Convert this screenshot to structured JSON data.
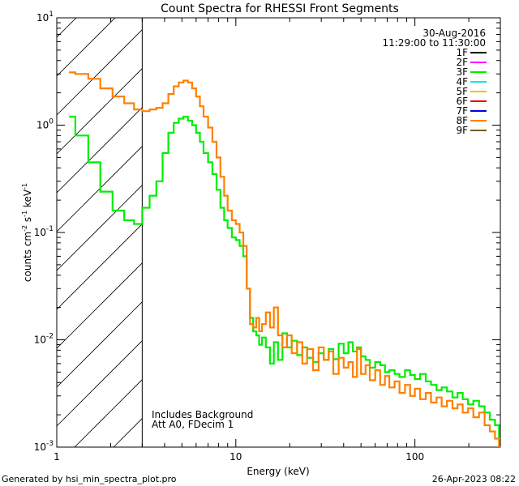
{
  "chart_data": {
    "type": "line",
    "title": "Count Spectra for RHESSI Front Segments",
    "xlabel": "Energy (keV)",
    "ylabel": "counts cm-2 s-1 keV-1",
    "ylabel_parts": {
      "base1": "counts cm",
      "sup1": "-2",
      "mid": " s",
      "sup2": "-1",
      "mid2": " keV",
      "sup3": "-1"
    },
    "xscale": "log",
    "yscale": "log",
    "xlim": [
      1,
      300
    ],
    "ylim": [
      0.001,
      10
    ],
    "x_ticks": [
      {
        "value": 1,
        "label": "1"
      },
      {
        "value": 10,
        "label": "10"
      },
      {
        "value": 100,
        "label": "100"
      }
    ],
    "y_ticks": [
      {
        "value": 10,
        "base": "10",
        "exp": "1"
      },
      {
        "value": 1,
        "base": "10",
        "exp": "0"
      },
      {
        "value": 0.1,
        "base": "10",
        "exp": "-1"
      },
      {
        "value": 0.01,
        "base": "10",
        "exp": "-2"
      },
      {
        "value": 0.001,
        "base": "10",
        "exp": "-3"
      }
    ],
    "date": "30-Aug-2016",
    "time_range": "11:29:00 to 11:30:00",
    "legend_position": "top-right",
    "legend": [
      {
        "label": "1F",
        "color": "#000000"
      },
      {
        "label": "2F",
        "color": "#ff00ff"
      },
      {
        "label": "3F",
        "color": "#00ee00"
      },
      {
        "label": "4F",
        "color": "#00e5ee"
      },
      {
        "label": "5F",
        "color": "#f0c000"
      },
      {
        "label": "6F",
        "color": "#dd0000"
      },
      {
        "label": "7F",
        "color": "#0000dd"
      },
      {
        "label": "8F",
        "color": "#ff8000"
      },
      {
        "label": "9F",
        "color": "#7a5a00"
      }
    ],
    "hatch_region": {
      "x_min": 1,
      "x_max": 3,
      "note": "attenuator shaded low-energy region"
    },
    "annotations": [
      "Includes Background",
      "Att A0, FDecim 1"
    ],
    "series": [
      {
        "name": "3F",
        "color": "#00ee00",
        "x": [
          1.17,
          1.27,
          1.5,
          1.75,
          2.05,
          2.38,
          2.7,
          3.0,
          3.3,
          3.6,
          3.9,
          4.2,
          4.5,
          4.8,
          5.1,
          5.4,
          5.7,
          6.0,
          6.3,
          6.6,
          7.0,
          7.4,
          7.8,
          8.2,
          8.6,
          9.0,
          9.5,
          10.0,
          10.5,
          11.0,
          11.5,
          12.0,
          12.5,
          13.0,
          13.5,
          14.0,
          14.7,
          15.5,
          16.3,
          17.2,
          18.2,
          19.3,
          20.5,
          22,
          23.5,
          25,
          27,
          29,
          31,
          33,
          35,
          37.5,
          40,
          42.5,
          45,
          47.5,
          50,
          53,
          56,
          60,
          64,
          68,
          72,
          77,
          82,
          88,
          94,
          100,
          107,
          115,
          123,
          132,
          141,
          151,
          162,
          173,
          185,
          198,
          212,
          228,
          245,
          262,
          280,
          295
        ],
        "y": [
          1.2,
          0.8,
          0.45,
          0.24,
          0.16,
          0.13,
          0.12,
          0.17,
          0.22,
          0.3,
          0.55,
          0.85,
          1.05,
          1.15,
          1.2,
          1.1,
          1.0,
          0.85,
          0.7,
          0.55,
          0.45,
          0.35,
          0.25,
          0.17,
          0.13,
          0.11,
          0.09,
          0.085,
          0.075,
          0.06,
          0.03,
          0.016,
          0.012,
          0.011,
          0.009,
          0.0105,
          0.0085,
          0.006,
          0.0095,
          0.0065,
          0.0115,
          0.0085,
          0.0098,
          0.0072,
          0.0085,
          0.0068,
          0.0062,
          0.0075,
          0.0065,
          0.0082,
          0.0066,
          0.0092,
          0.0075,
          0.0095,
          0.0078,
          0.0085,
          0.007,
          0.0065,
          0.0055,
          0.0062,
          0.0058,
          0.005,
          0.0052,
          0.0048,
          0.0045,
          0.0052,
          0.0047,
          0.0043,
          0.0048,
          0.0041,
          0.0038,
          0.0034,
          0.0036,
          0.0033,
          0.0029,
          0.0032,
          0.0028,
          0.0025,
          0.0027,
          0.0024,
          0.0021,
          0.0018,
          0.0016,
          0.0012
        ]
      },
      {
        "name": "8F",
        "color": "#ff8000",
        "x": [
          1.17,
          1.27,
          1.5,
          1.75,
          2.05,
          2.38,
          2.7,
          3.0,
          3.3,
          3.6,
          3.9,
          4.2,
          4.5,
          4.8,
          5.1,
          5.4,
          5.7,
          6.0,
          6.3,
          6.6,
          7.0,
          7.4,
          7.8,
          8.2,
          8.6,
          9.0,
          9.5,
          10.0,
          10.5,
          11.0,
          11.5,
          12.0,
          12.5,
          13.0,
          13.5,
          14.0,
          14.7,
          15.5,
          16.3,
          17.2,
          18.2,
          19.3,
          20.5,
          22,
          23.5,
          25,
          27,
          29,
          31,
          33,
          35,
          37.5,
          40,
          42.5,
          45,
          47.5,
          50,
          53,
          56,
          60,
          64,
          68,
          72,
          77,
          82,
          88,
          94,
          100,
          107,
          115,
          123,
          132,
          141,
          151,
          162,
          173,
          185,
          198,
          212,
          228,
          245,
          262,
          280,
          295
        ],
        "y": [
          3.1,
          3.0,
          2.7,
          2.2,
          1.85,
          1.6,
          1.4,
          1.35,
          1.4,
          1.45,
          1.6,
          1.95,
          2.3,
          2.5,
          2.6,
          2.5,
          2.2,
          1.85,
          1.5,
          1.2,
          0.95,
          0.7,
          0.5,
          0.33,
          0.22,
          0.16,
          0.13,
          0.12,
          0.1,
          0.075,
          0.03,
          0.014,
          0.013,
          0.016,
          0.012,
          0.014,
          0.018,
          0.013,
          0.02,
          0.011,
          0.0085,
          0.011,
          0.0075,
          0.0095,
          0.006,
          0.0082,
          0.0052,
          0.0085,
          0.0065,
          0.0078,
          0.0048,
          0.0068,
          0.0055,
          0.0062,
          0.0045,
          0.0082,
          0.0048,
          0.0058,
          0.0042,
          0.0052,
          0.0038,
          0.0046,
          0.0036,
          0.0041,
          0.0032,
          0.0038,
          0.003,
          0.0035,
          0.0028,
          0.0032,
          0.0026,
          0.0029,
          0.0024,
          0.0027,
          0.0023,
          0.0025,
          0.0021,
          0.0023,
          0.0019,
          0.0021,
          0.0016,
          0.0014,
          0.0012,
          0.001
        ]
      }
    ]
  },
  "footer": {
    "left": "Generated by hsi_min_spectra_plot.pro",
    "right": "26-Apr-2023 08:22"
  }
}
